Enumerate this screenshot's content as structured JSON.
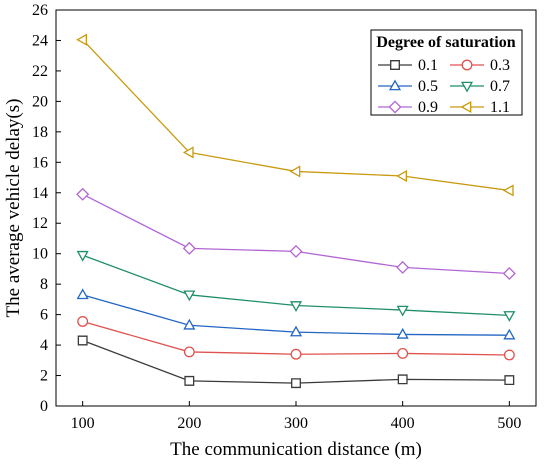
{
  "chart_data": {
    "type": "line",
    "title": "",
    "xlabel": "The communication distance (m)",
    "ylabel": "The average vehicle delay(s)",
    "x": [
      100,
      200,
      300,
      400,
      500
    ],
    "xlim": [
      75,
      525
    ],
    "ylim": [
      0,
      26
    ],
    "xticks": [
      100,
      200,
      300,
      400,
      500
    ],
    "yticks": [
      0,
      2,
      4,
      6,
      8,
      10,
      12,
      14,
      16,
      18,
      20,
      22,
      24,
      26
    ],
    "grid": false,
    "legend": {
      "title": "Degree of saturation",
      "placement": "top-right",
      "columns": 2
    },
    "series": [
      {
        "name": "0.1",
        "color": "#3a3a3a",
        "marker": "square",
        "values": [
          4.3,
          1.65,
          1.5,
          1.75,
          1.7
        ]
      },
      {
        "name": "0.3",
        "color": "#e0524e",
        "marker": "circle",
        "values": [
          5.55,
          3.55,
          3.4,
          3.45,
          3.35
        ]
      },
      {
        "name": "0.5",
        "color": "#2466c4",
        "marker": "triangle-up",
        "values": [
          7.3,
          5.3,
          4.85,
          4.7,
          4.65
        ]
      },
      {
        "name": "0.7",
        "color": "#1f8f6a",
        "marker": "triangle-down",
        "values": [
          9.9,
          7.3,
          6.6,
          6.3,
          5.95
        ]
      },
      {
        "name": "0.9",
        "color": "#b266d4",
        "marker": "diamond",
        "values": [
          13.9,
          10.35,
          10.15,
          9.1,
          8.7
        ]
      },
      {
        "name": "1.1",
        "color": "#c99a10",
        "marker": "triangle-left",
        "values": [
          24.05,
          16.65,
          15.4,
          15.1,
          14.15
        ]
      }
    ]
  }
}
